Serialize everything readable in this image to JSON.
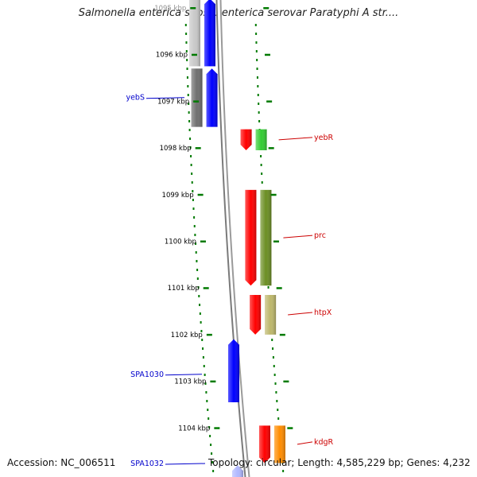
{
  "title": "Salmonella enterica subsp. enterica serovar Paratyphi A str....",
  "footer": {
    "accession": "Accession: NC_006511",
    "topology": "Topology: circular; Length: 4,585,229 bp; Genes: 4,232"
  },
  "colors": {
    "forward_cds": "#ff0000",
    "reverse_cds": "#0000ff",
    "backbone": "#8c8c8c",
    "tick": "#007a00",
    "label_forward": "#cc0000",
    "label_reverse": "#0000cc",
    "tick_label": "#000000"
  },
  "ticks": [
    {
      "label": "1095 kbp",
      "kbp": 1095,
      "faded": true
    },
    {
      "label": "1096 kbp",
      "kbp": 1096
    },
    {
      "label": "1097 kbp",
      "kbp": 1097
    },
    {
      "label": "1098 kbp",
      "kbp": 1098
    },
    {
      "label": "1099 kbp",
      "kbp": 1099
    },
    {
      "label": "1100 kbp",
      "kbp": 1100
    },
    {
      "label": "1101 kbp",
      "kbp": 1101
    },
    {
      "label": "1102 kbp",
      "kbp": 1102
    },
    {
      "label": "1103 kbp",
      "kbp": 1103
    },
    {
      "label": "1104 kbp",
      "kbp": 1104
    }
  ],
  "features": [
    {
      "name": "",
      "strand": "reverse",
      "start_kbp": 1094.8,
      "end_kbp": 1096.25,
      "color": "#0000ff"
    },
    {
      "name": "",
      "strand": "reverse",
      "start_kbp": 1094.8,
      "end_kbp": 1096.25,
      "color": "#c8c8c8",
      "track": "outer"
    },
    {
      "name": "yebS",
      "strand": "reverse",
      "start_kbp": 1096.3,
      "end_kbp": 1097.55,
      "color": "#0000ff"
    },
    {
      "name": "",
      "strand": "reverse",
      "start_kbp": 1096.3,
      "end_kbp": 1097.55,
      "color": "#6e6e6e",
      "track": "outer"
    },
    {
      "name": "yebR",
      "strand": "forward",
      "start_kbp": 1097.6,
      "end_kbp": 1098.05,
      "color": "#ff0000"
    },
    {
      "name": "",
      "strand": "forward",
      "start_kbp": 1097.6,
      "end_kbp": 1098.05,
      "color": "#33cc33",
      "track": "outer"
    },
    {
      "name": "prc",
      "strand": "forward",
      "start_kbp": 1098.9,
      "end_kbp": 1100.95,
      "color": "#ff0000"
    },
    {
      "name": "",
      "strand": "forward",
      "start_kbp": 1098.9,
      "end_kbp": 1100.95,
      "color": "#6b8e23",
      "track": "outer"
    },
    {
      "name": "htpX",
      "strand": "forward",
      "start_kbp": 1101.15,
      "end_kbp": 1102.0,
      "color": "#ff0000"
    },
    {
      "name": "",
      "strand": "forward",
      "start_kbp": 1101.15,
      "end_kbp": 1102.0,
      "color": "#bdb76b",
      "track": "outer"
    },
    {
      "name": "SPA1030",
      "strand": "reverse",
      "start_kbp": 1102.1,
      "end_kbp": 1103.45,
      "color": "#0000ff"
    },
    {
      "name": "kdgR",
      "strand": "forward",
      "start_kbp": 1103.95,
      "end_kbp": 1104.75,
      "color": "#ff0000"
    },
    {
      "name": "",
      "strand": "forward",
      "start_kbp": 1103.95,
      "end_kbp": 1104.75,
      "color": "#ff8c00",
      "track": "outer"
    },
    {
      "name": "SPA1032",
      "strand": "reverse",
      "start_kbp": 1104.8,
      "end_kbp": 1105.2,
      "color": "#b0b8ff"
    }
  ]
}
